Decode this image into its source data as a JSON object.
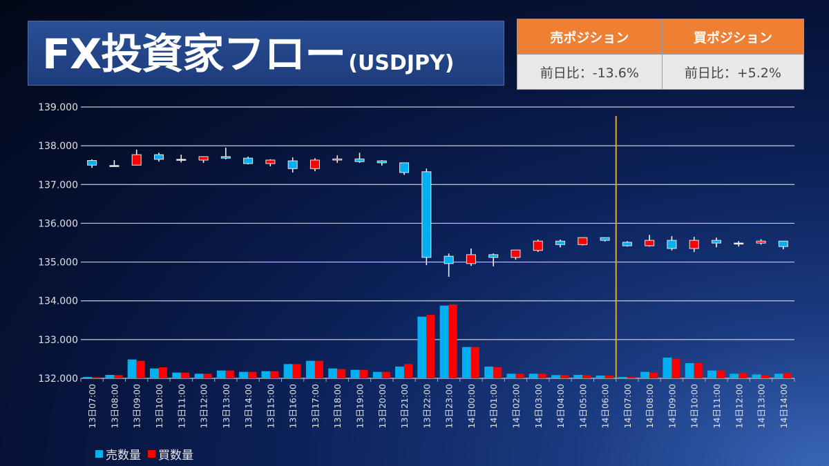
{
  "title": {
    "main": "FX投資家フロー",
    "sub": "(USDJPY)"
  },
  "positions": [
    {
      "header": "売ポジション",
      "value": "前日比：-13.6%"
    },
    {
      "header": "買ポジション",
      "value": "前日比：+5.2%"
    }
  ],
  "legend": {
    "sell": "売数量",
    "buy": "買数量"
  },
  "colors": {
    "sell": "#00b0f0",
    "buy": "#ff0000",
    "marker_line": "#e6a817",
    "header": "#ee7f33"
  },
  "chart_data": {
    "type": "candlestick+bar",
    "ylim": [
      132,
      139
    ],
    "yticks": [
      "132.000",
      "133.000",
      "134.000",
      "135.000",
      "136.000",
      "137.000",
      "138.000",
      "139.000"
    ],
    "grid": true,
    "legend_position": "bottom-left",
    "marker_after_category": "14日06:00",
    "categories": [
      "13日07:00",
      "13日08:00",
      "13日09:00",
      "13日10:00",
      "13日11:00",
      "13日12:00",
      "13日13:00",
      "13日14:00",
      "13日15:00",
      "13日16:00",
      "13日17:00",
      "13日18:00",
      "13日19:00",
      "13日20:00",
      "13日21:00",
      "13日22:00",
      "13日23:00",
      "14日00:00",
      "14日01:00",
      "14日02:00",
      "14日03:00",
      "14日04:00",
      "14日05:00",
      "14日06:00",
      "14日07:00",
      "14日08:00",
      "14日09:00",
      "14日10:00",
      "14日11:00",
      "14日12:00",
      "14日13:00",
      "14日14:00"
    ],
    "ohlc": [
      [
        137.62,
        137.65,
        137.43,
        137.5
      ],
      [
        137.49,
        137.63,
        137.49,
        137.49
      ],
      [
        137.5,
        137.9,
        137.49,
        137.77
      ],
      [
        137.77,
        137.82,
        137.59,
        137.65
      ],
      [
        137.65,
        137.77,
        137.57,
        137.65
      ],
      [
        137.63,
        137.72,
        137.56,
        137.72
      ],
      [
        137.72,
        137.95,
        137.65,
        137.68
      ],
      [
        137.68,
        137.72,
        137.52,
        137.54
      ],
      [
        137.54,
        137.65,
        137.47,
        137.63
      ],
      [
        137.61,
        137.7,
        137.31,
        137.41
      ],
      [
        137.41,
        137.68,
        137.34,
        137.63
      ],
      [
        137.63,
        137.75,
        137.56,
        137.66
      ],
      [
        137.66,
        137.82,
        137.56,
        137.59
      ],
      [
        137.61,
        137.63,
        137.49,
        137.56
      ],
      [
        137.56,
        137.56,
        137.25,
        137.31
      ],
      [
        137.33,
        137.41,
        134.92,
        135.12
      ],
      [
        135.15,
        135.22,
        134.62,
        134.96
      ],
      [
        134.96,
        135.35,
        134.9,
        135.19
      ],
      [
        135.19,
        135.22,
        134.89,
        135.12
      ],
      [
        135.12,
        135.31,
        135.06,
        135.31
      ],
      [
        135.3,
        135.58,
        135.26,
        135.54
      ],
      [
        135.54,
        135.58,
        135.38,
        135.45
      ],
      [
        135.45,
        135.63,
        135.43,
        135.63
      ],
      [
        135.63,
        135.63,
        135.53,
        135.56
      ],
      [
        135.51,
        135.54,
        135.4,
        135.42
      ],
      [
        135.42,
        135.7,
        135.4,
        135.56
      ],
      [
        135.56,
        135.67,
        135.3,
        135.35
      ],
      [
        135.35,
        135.65,
        135.26,
        135.56
      ],
      [
        135.56,
        135.63,
        135.38,
        135.49
      ],
      [
        135.49,
        135.54,
        135.4,
        135.49
      ],
      [
        135.49,
        135.59,
        135.45,
        135.54
      ],
      [
        135.54,
        135.54,
        135.33,
        135.4
      ]
    ],
    "series": [
      {
        "name": "売数量",
        "values": [
          6,
          15,
          82,
          43,
          25,
          20,
          34,
          28,
          31,
          62,
          76,
          43,
          37,
          28,
          51,
          268,
          316,
          136,
          51,
          20,
          20,
          14,
          15,
          12,
          6,
          28,
          90,
          66,
          34,
          20,
          17,
          20
        ]
      },
      {
        "name": "買数量",
        "values": [
          5,
          14,
          76,
          48,
          25,
          20,
          34,
          28,
          31,
          62,
          76,
          40,
          37,
          28,
          62,
          276,
          321,
          136,
          48,
          20,
          20,
          14,
          14,
          12,
          6,
          25,
          85,
          66,
          34,
          23,
          14,
          23
        ]
      }
    ]
  }
}
